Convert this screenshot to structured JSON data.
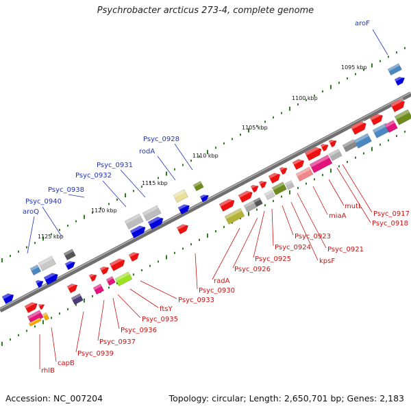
{
  "title": "Psychrobacter arcticus 273-4, complete genome",
  "accession_text": "Accession: NC_007204",
  "topology_text": "Topology: circular; Length: 2,650,701 bp; Genes: 2,183",
  "scale_labels": [
    "1095 kbp",
    "1100 kbp",
    "1105 kbp",
    "1110 kbp",
    "1115 kbp",
    "1120 kbp",
    "1125 kbp"
  ],
  "upper_gene_labels": [
    "aroF",
    "Psyc_0928",
    "rodA",
    "Psyc_0931",
    "Psyc_0932",
    "Psyc_0938",
    "Psyc_0940",
    "aroQ"
  ],
  "lower_gene_labels": [
    "Psyc_0917",
    "Psyc_0918",
    "mutL",
    "miaA",
    "Psyc_0921",
    "kpsF",
    "Psyc_0923",
    "Psyc_0924",
    "Psyc_0925",
    "Psyc_0926",
    "radA",
    "Psyc_0930",
    "Psyc_0933",
    "ftsY",
    "Psyc_0935",
    "Psyc_0936",
    "Psyc_0937",
    "Psyc_0939",
    "capB",
    "rhlB"
  ],
  "colors": {
    "backbone": "#7f7f7f",
    "tick": "#2e7d22",
    "label_blue": "#2233bb",
    "label_red": "#cc1111",
    "forward_gene": "#0000dd",
    "reverse_gene": "#ee1111"
  }
}
